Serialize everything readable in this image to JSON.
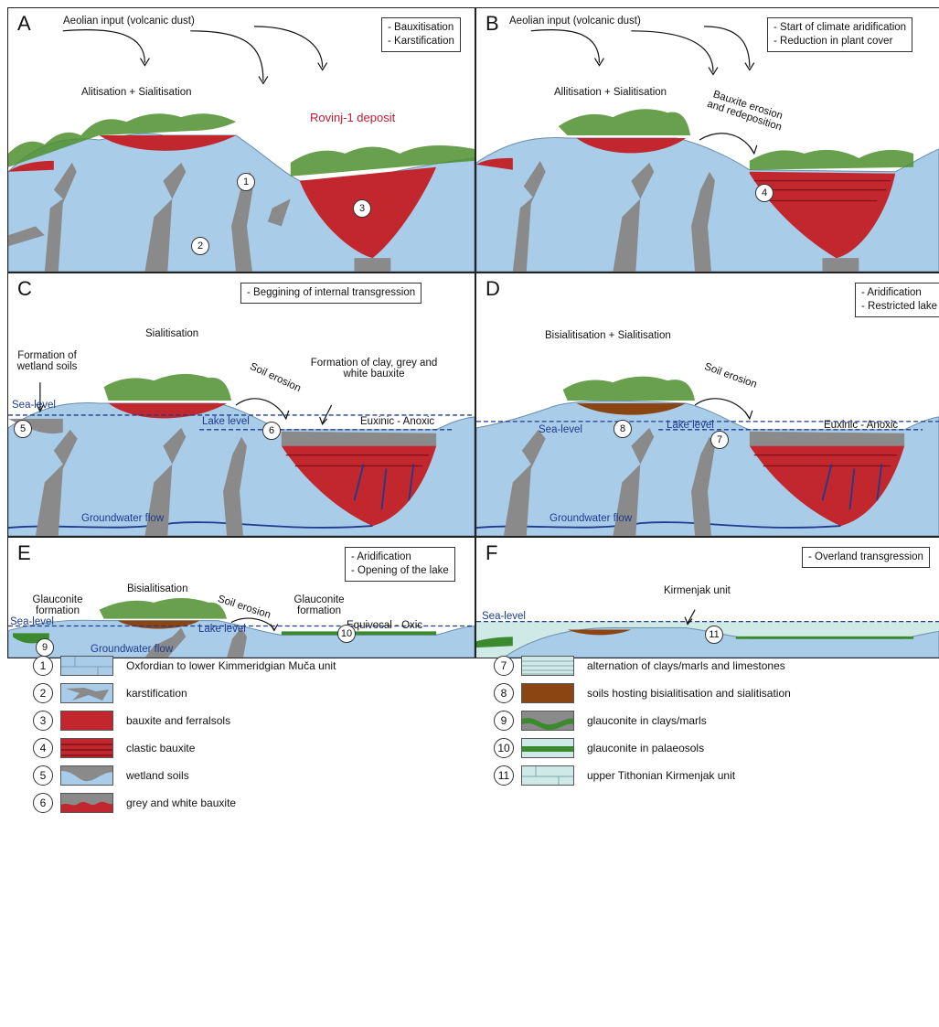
{
  "panels": [
    {
      "letter": "A",
      "notes": [
        "- Bauxitisation",
        "- Karstification"
      ],
      "labels": {
        "aeolian": "Aeolian input (volcanic dust)",
        "process": "Alitisation + Sialitisation",
        "deposit": "Rovinj-1 deposit"
      },
      "markers": [
        "1",
        "2",
        "3"
      ]
    },
    {
      "letter": "B",
      "notes": [
        "- Start of climate aridification",
        "- Reduction in plant cover"
      ],
      "labels": {
        "aeolian": "Aeolian input (volcanic dust)",
        "process": "Allitisation + Sialitisation",
        "erosion": "Bauxite erosion and redeposition"
      },
      "markers": [
        "4"
      ]
    },
    {
      "letter": "C",
      "notes": [
        "- Beggining of internal transgression"
      ],
      "labels": {
        "process": "Sialitisation",
        "wetland": "Formation of wetland soils",
        "sealevel": "Sea-level",
        "soil_erosion": "Soil erosion",
        "formation": "Formation of clay, grey and white bauxite",
        "lakelevel": "Lake level",
        "condition": "Euxinic - Anoxic",
        "groundwater": "Groundwater flow"
      },
      "markers": [
        "5",
        "6"
      ]
    },
    {
      "letter": "D",
      "notes": [
        "- Aridification",
        "- Restricted lake"
      ],
      "labels": {
        "process": "Bisialitisation + Sialitisation",
        "soil_erosion": "Soil erosion",
        "sealevel": "Sea-level",
        "lakelevel": "Lake level",
        "condition": "Euxinic - Anoxic",
        "groundwater": "Groundwater flow"
      },
      "markers": [
        "8",
        "7"
      ]
    },
    {
      "letter": "E",
      "notes": [
        "- Aridification",
        "- Opening of the lake"
      ],
      "labels": {
        "process": "Bisialitisation",
        "glauconite1": "Glauconite formation",
        "sealevel": "Sea-level",
        "soil_erosion": "Soil erosion",
        "glauconite2": "Glauconite formation",
        "lakelevel": "Lake level",
        "condition": "Equivocal - Oxic",
        "groundwater": "Groundwater flow"
      },
      "markers": [
        "9",
        "10"
      ]
    },
    {
      "letter": "F",
      "notes": [
        "- Overland transgression"
      ],
      "labels": {
        "unit": "Kirmenjak unit",
        "sealevel": "Sea-level"
      },
      "markers": [
        "11"
      ]
    }
  ],
  "legend": [
    {
      "num": "1",
      "label": "Oxfordian to lower Kimmeridgian Muča unit"
    },
    {
      "num": "2",
      "label": "karstification"
    },
    {
      "num": "3",
      "label": "bauxite and ferralsols"
    },
    {
      "num": "4",
      "label": "clastic bauxite"
    },
    {
      "num": "5",
      "label": "wetland soils"
    },
    {
      "num": "6",
      "label": "grey and white bauxite"
    },
    {
      "num": "7",
      "label": "alternation of clays/marls and limestones"
    },
    {
      "num": "8",
      "label": "soils hosting bisialitisation and sialitisation"
    },
    {
      "num": "9",
      "label": "glauconite in clays/marls"
    },
    {
      "num": "10",
      "label": "glauconite in palaeosols"
    },
    {
      "num": "11",
      "label": "upper Tithonian Kirmenjak unit"
    }
  ],
  "colors": {
    "limestone": "#a9cce8",
    "karst": "#8a8a8a",
    "bauxite": "#c1272d",
    "soil": "#8b4513",
    "glauconite": "#3c8a2e",
    "sealevel": "#1d3b8f",
    "kirmenjak": "#cfe9e6",
    "vegetation": "#4f8f2f"
  }
}
